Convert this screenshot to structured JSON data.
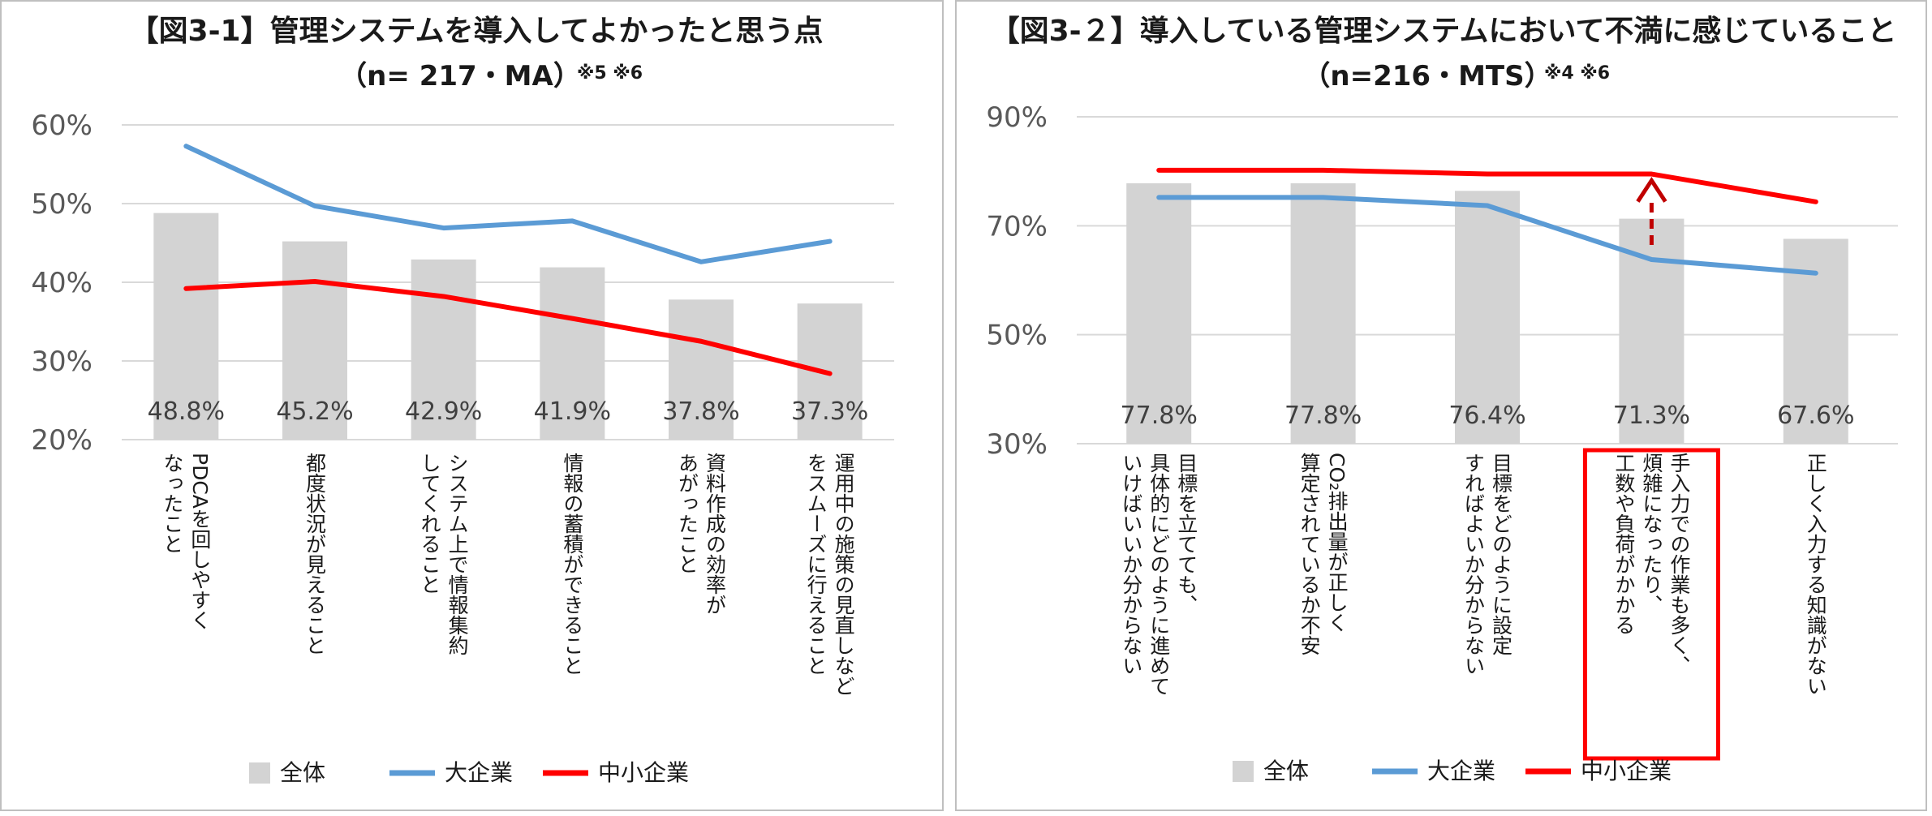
{
  "chart_data": [
    {
      "type": "bar",
      "title": "【図3-1】管理システムを導入してよかったと思う点",
      "subtitle": "（n= 217・MA）",
      "note": "※5 ※6",
      "ylim": [
        0.2,
        0.6
      ],
      "yticks": [
        "20%",
        "30%",
        "40%",
        "50%",
        "60%"
      ],
      "grid": true,
      "legend_position": "bottom",
      "categories": [
        [
          "PDCAを回しやすく",
          "なったこと"
        ],
        [
          "都度状況が見えること"
        ],
        [
          "システム上で情報集約",
          "してくれること"
        ],
        [
          "情報の蓄積ができること"
        ],
        [
          "資料作成の効率が",
          "あがったこと"
        ],
        [
          "運用中の施策の見直しなど",
          "をスムーズに行えること"
        ]
      ],
      "series": [
        {
          "name": "全体",
          "kind": "bar",
          "color": "#d3d3d3",
          "values": [
            0.488,
            0.452,
            0.429,
            0.419,
            0.378,
            0.373
          ],
          "labels": [
            "48.8%",
            "45.2%",
            "42.9%",
            "41.9%",
            "37.8%",
            "37.3%"
          ]
        },
        {
          "name": "大企業",
          "kind": "line",
          "color": "#5b9bd5",
          "values": [
            0.573,
            0.497,
            0.469,
            0.478,
            0.426,
            0.452
          ]
        },
        {
          "name": "中小企業",
          "kind": "line",
          "color": "#ff0000",
          "values": [
            0.392,
            0.401,
            0.382,
            0.354,
            0.325,
            0.284
          ]
        }
      ]
    },
    {
      "type": "bar",
      "title": "【図3-２】導入している管理システムにおいて不満に感じていること",
      "subtitle": "（n=216・MTS）",
      "note": "※4 ※6",
      "ylim": [
        0.3,
        0.9
      ],
      "yticks": [
        "30%",
        "50%",
        "70%",
        "90%"
      ],
      "grid": true,
      "legend_position": "bottom",
      "highlight_category": 3,
      "arrow_category": 3,
      "categories": [
        [
          "目標を立てても、",
          "具体的にどのように進めて",
          "いけばいいか分からない"
        ],
        [
          "CO₂排出量が正しく",
          "算定されているか不安"
        ],
        [
          "目標をどのように設定",
          "すればよいか分からない"
        ],
        [
          "手入力での作業も多く、",
          "煩雑になったり、",
          "工数や負荷がかかる"
        ],
        [
          "正しく入力する知識がない"
        ]
      ],
      "series": [
        {
          "name": "全体",
          "kind": "bar",
          "color": "#d3d3d3",
          "values": [
            0.778,
            0.778,
            0.764,
            0.713,
            0.676
          ],
          "labels": [
            "77.8%",
            "77.8%",
            "76.4%",
            "71.3%",
            "67.6%"
          ]
        },
        {
          "name": "大企業",
          "kind": "line",
          "color": "#5b9bd5",
          "values": [
            0.752,
            0.752,
            0.737,
            0.638,
            0.613
          ]
        },
        {
          "name": "中小企業",
          "kind": "line",
          "color": "#ff0000",
          "values": [
            0.802,
            0.802,
            0.795,
            0.795,
            0.744
          ]
        }
      ]
    }
  ]
}
